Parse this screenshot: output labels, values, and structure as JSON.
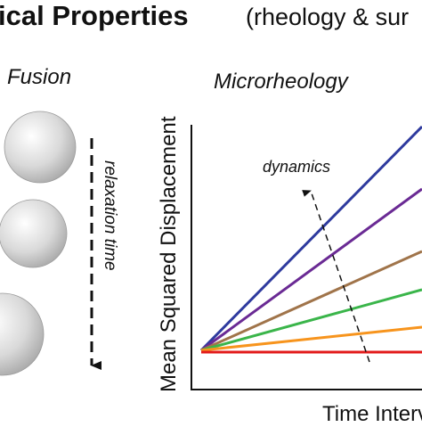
{
  "header": {
    "title": "ical Properties",
    "subtitle": "(rheology & sur"
  },
  "left_panel": {
    "title": "Fusion",
    "arrow_label": "relaxation time"
  },
  "right_panel": {
    "title": "Microrheology",
    "arrow_label": "dynamics",
    "y_label": "Mean Squared Displacement",
    "x_label": "Time Interv"
  }
}
